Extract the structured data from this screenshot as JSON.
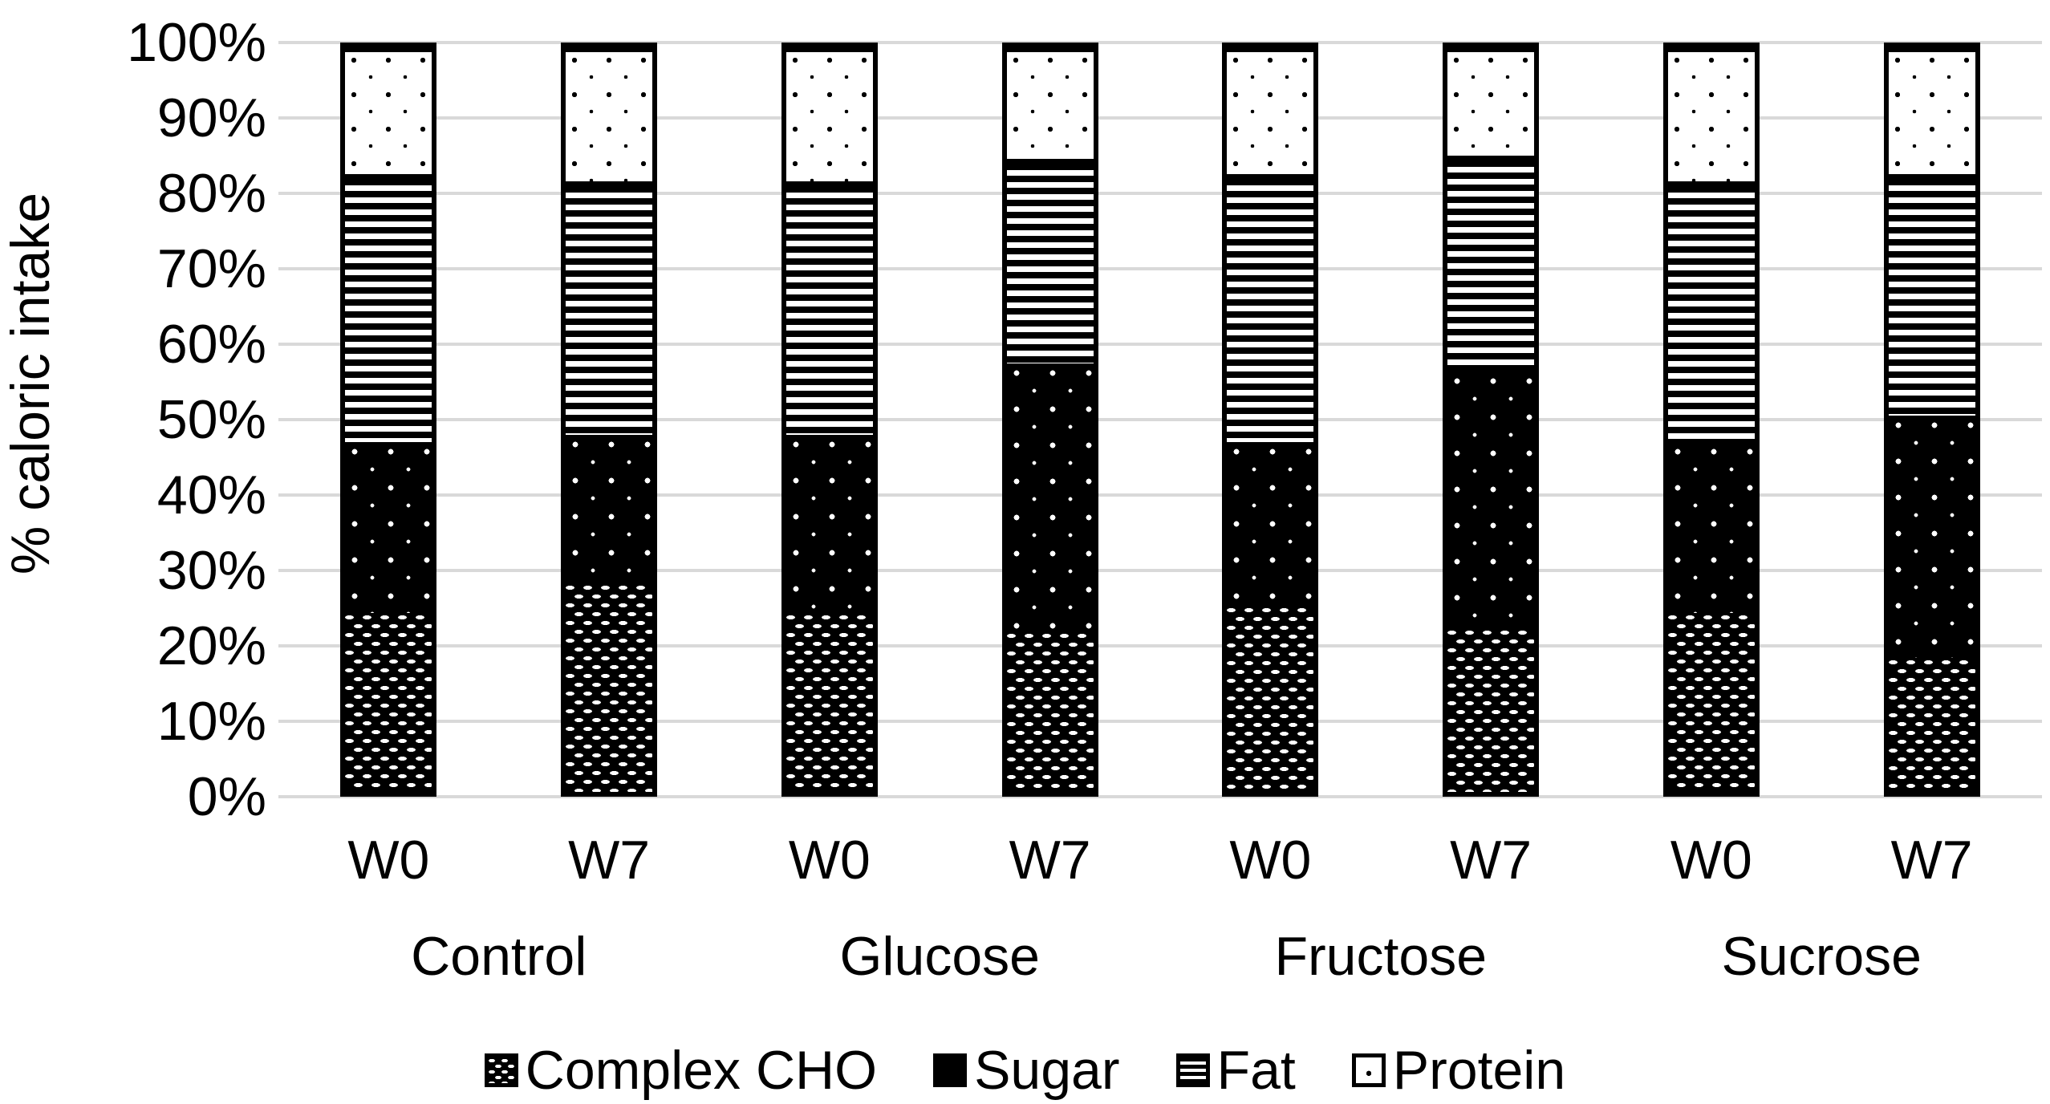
{
  "chart_data": {
    "type": "bar",
    "stacked": true,
    "title": "",
    "xlabel": "",
    "ylabel": "% caloric intake",
    "ylim": [
      0,
      100
    ],
    "grid": true,
    "legend_position": "bottom",
    "y_ticks": [
      "100%",
      "90%",
      "80%",
      "70%",
      "60%",
      "50%",
      "40%",
      "30%",
      "20%",
      "10%",
      "0%"
    ],
    "series": [
      {
        "name": "Complex CHO",
        "key": "cho"
      },
      {
        "name": "Sugar",
        "key": "sugar"
      },
      {
        "name": "Fat",
        "key": "fat"
      },
      {
        "name": "Protein",
        "key": "protein"
      }
    ],
    "groups": [
      {
        "label": "Control",
        "bars": [
          {
            "week": "W0",
            "values": [
              24,
              23,
              36,
              17
            ]
          },
          {
            "week": "W7",
            "values": [
              28,
              20,
              34,
              18
            ]
          }
        ]
      },
      {
        "label": "Glucose",
        "bars": [
          {
            "week": "W0",
            "values": [
              24,
              24,
              34,
              18
            ]
          },
          {
            "week": "W7",
            "values": [
              21.5,
              36,
              27.5,
              15
            ]
          }
        ]
      },
      {
        "label": "Fructose",
        "bars": [
          {
            "week": "W0",
            "values": [
              25,
              22,
              36,
              17
            ]
          },
          {
            "week": "W7",
            "values": [
              22,
              34.5,
              29,
              14.5
            ]
          }
        ]
      },
      {
        "label": "Sucrose",
        "bars": [
          {
            "week": "W0",
            "values": [
              24,
              23,
              35,
              18
            ]
          },
          {
            "week": "W7",
            "values": [
              18,
              32.5,
              32.5,
              17
            ]
          }
        ]
      }
    ],
    "colors": {
      "foreground": "#000000",
      "background": "#ffffff",
      "gridline": "#d9d9d9"
    }
  }
}
